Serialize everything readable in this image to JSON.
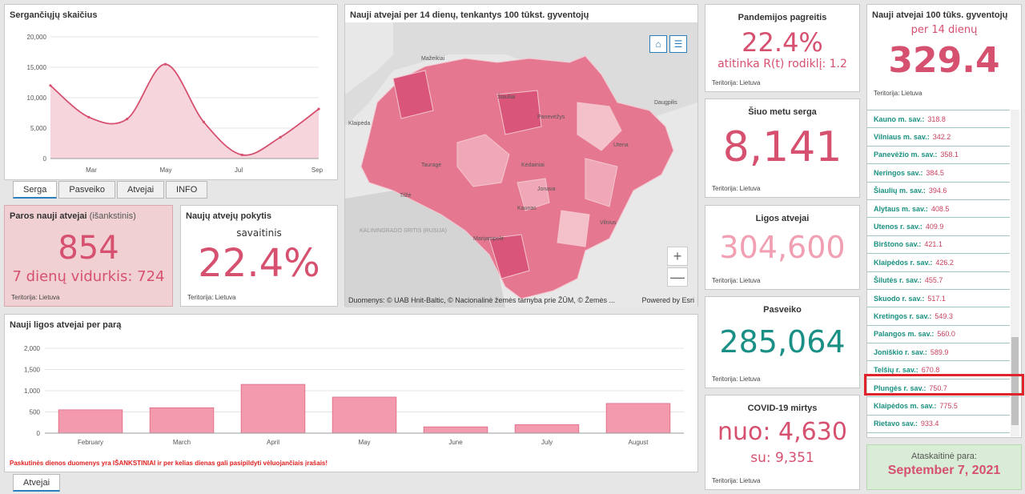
{
  "active_chart": {
    "title": "Sergančiųjų skaičius",
    "tabs": [
      "Serga",
      "Pasveiko",
      "Atvejai",
      "INFO"
    ],
    "yticks": [
      "20,000",
      "15,000",
      "10,000",
      "5,000",
      "0"
    ],
    "xticks": [
      "Mar",
      "May",
      "Jul",
      "Sep"
    ]
  },
  "daily_new": {
    "title_bold": "Paros nauji atvejai",
    "title_light": " (išankstinis)",
    "value": "854",
    "avg_label": "7 dienų vidurkis: 724",
    "territory": "Teritorija: Lietuva"
  },
  "change": {
    "title": "Naujų atvejų pokytis",
    "subtitle": "savaitinis",
    "value": "22.4%",
    "territory": "Teritorija: Lietuva"
  },
  "map": {
    "title": "Nauji atvejai per 14 dienų, tenkantys 100 tūkst. gyventojų",
    "attribution": "Duomenys: © UAB Hnit-Baltic, © Nacionalinė žemės tarnyba prie ŽŪM, © Žemės ...",
    "powered": "Powered by Esri",
    "labels": [
      "Mažeikiai",
      "Šiauliai",
      "Panevėžys",
      "Daugpilis",
      "Klaipėda",
      "Utena",
      "Tauragė",
      "Kėdainiai",
      "Tilžė",
      "Jonava",
      "KALININGRADO SRITIS (RUSIJA)",
      "Kaunas",
      "Vilnius",
      "Marijampolė"
    ],
    "home_icon": "⌂",
    "list_icon": "☰",
    "zoom_in": "+",
    "zoom_out": "—"
  },
  "growth": {
    "title": "Pandemijos pagreitis",
    "value": "22.4%",
    "rt": "atitinka R(t) rodiklį: 1.2",
    "territory": "Teritorija: Lietuva"
  },
  "sick": {
    "title": "Šiuo metu serga",
    "value": "8,141",
    "territory": "Teritorija: Lietuva"
  },
  "cases": {
    "title": "Ligos atvejai",
    "value": "304,600",
    "territory": "Teritorija: Lietuva"
  },
  "recovered": {
    "title": "Pasveiko",
    "value": "285,064",
    "territory": "Teritorija: Lietuva"
  },
  "deaths": {
    "title": "COVID-19 mirtys",
    "value": "nuo: 4,630",
    "sub": "su: 9,351",
    "territory": "Teritorija: Lietuva"
  },
  "per100k": {
    "title": "Nauji atvejai 100 tūks. gyventojų",
    "subtitle": "per 14 dienų",
    "value": "329.4",
    "territory": "Teritorija: Lietuva",
    "items": [
      {
        "name": "Kauno m. sav.:",
        "value": "318.8"
      },
      {
        "name": "Vilniaus m. sav.:",
        "value": "342.2"
      },
      {
        "name": "Panevėžio m. sav.:",
        "value": "358.1"
      },
      {
        "name": "Neringos sav.:",
        "value": "384.5"
      },
      {
        "name": "Šiaulių m. sav.:",
        "value": "394.6"
      },
      {
        "name": "Alytaus m. sav.:",
        "value": "408.5"
      },
      {
        "name": "Utenos r. sav.:",
        "value": "409.9"
      },
      {
        "name": "Birštono sav.:",
        "value": "421.1"
      },
      {
        "name": "Klaipėdos r. sav.:",
        "value": "426.2"
      },
      {
        "name": "Šilutės r. sav.:",
        "value": "455.7"
      },
      {
        "name": "Skuodo r. sav.:",
        "value": "517.1"
      },
      {
        "name": "Kretingos r. sav.:",
        "value": "549.3"
      },
      {
        "name": "Palangos m. sav.:",
        "value": "560.0"
      },
      {
        "name": "Joniškio r. sav.:",
        "value": "589.9"
      },
      {
        "name": "Telšių r. sav.:",
        "value": "670.8"
      },
      {
        "name": "Plungės r. sav.:",
        "value": "750.7"
      },
      {
        "name": "Klaipėdos m. sav.:",
        "value": "775.5"
      },
      {
        "name": "Rietavo sav.:",
        "value": "933.4"
      }
    ]
  },
  "report": {
    "label": "Ataskaitinė para:",
    "date": "September 7, 2021"
  },
  "bars_chart": {
    "title": "Nauji ligos atvejai per parą",
    "yticks": [
      "2,000",
      "1,500",
      "1,000",
      "500",
      "0"
    ],
    "xticks": [
      "February",
      "March",
      "April",
      "May",
      "June",
      "July",
      "August"
    ],
    "warning": "Paskutinės dienos duomenys yra IŠANKSTINIAI ir per kelias dienas gali pasipildyti vėluojančiais įrašais!",
    "tab": "Atvejai"
  },
  "chart_data": [
    {
      "type": "area",
      "title": "Sergančiųjų skaičius",
      "x": [
        "Feb",
        "Mar",
        "Apr",
        "May",
        "Jun",
        "Jul",
        "Aug",
        "Sep"
      ],
      "values": [
        12000,
        6800,
        6500,
        15500,
        6000,
        600,
        3500,
        8141
      ],
      "ylim": [
        0,
        20000
      ]
    },
    {
      "type": "bar",
      "title": "Nauji ligos atvejai per parą",
      "categories": [
        "February",
        "March",
        "April",
        "May",
        "June",
        "July",
        "August"
      ],
      "values": [
        550,
        600,
        1150,
        850,
        150,
        200,
        700
      ],
      "ylim": [
        0,
        2000
      ]
    }
  ],
  "colors": {
    "accent": "#d6506f",
    "teal": "#1a8f86",
    "pink_light": "#f0a8b8",
    "red_box": "#e0232b"
  }
}
